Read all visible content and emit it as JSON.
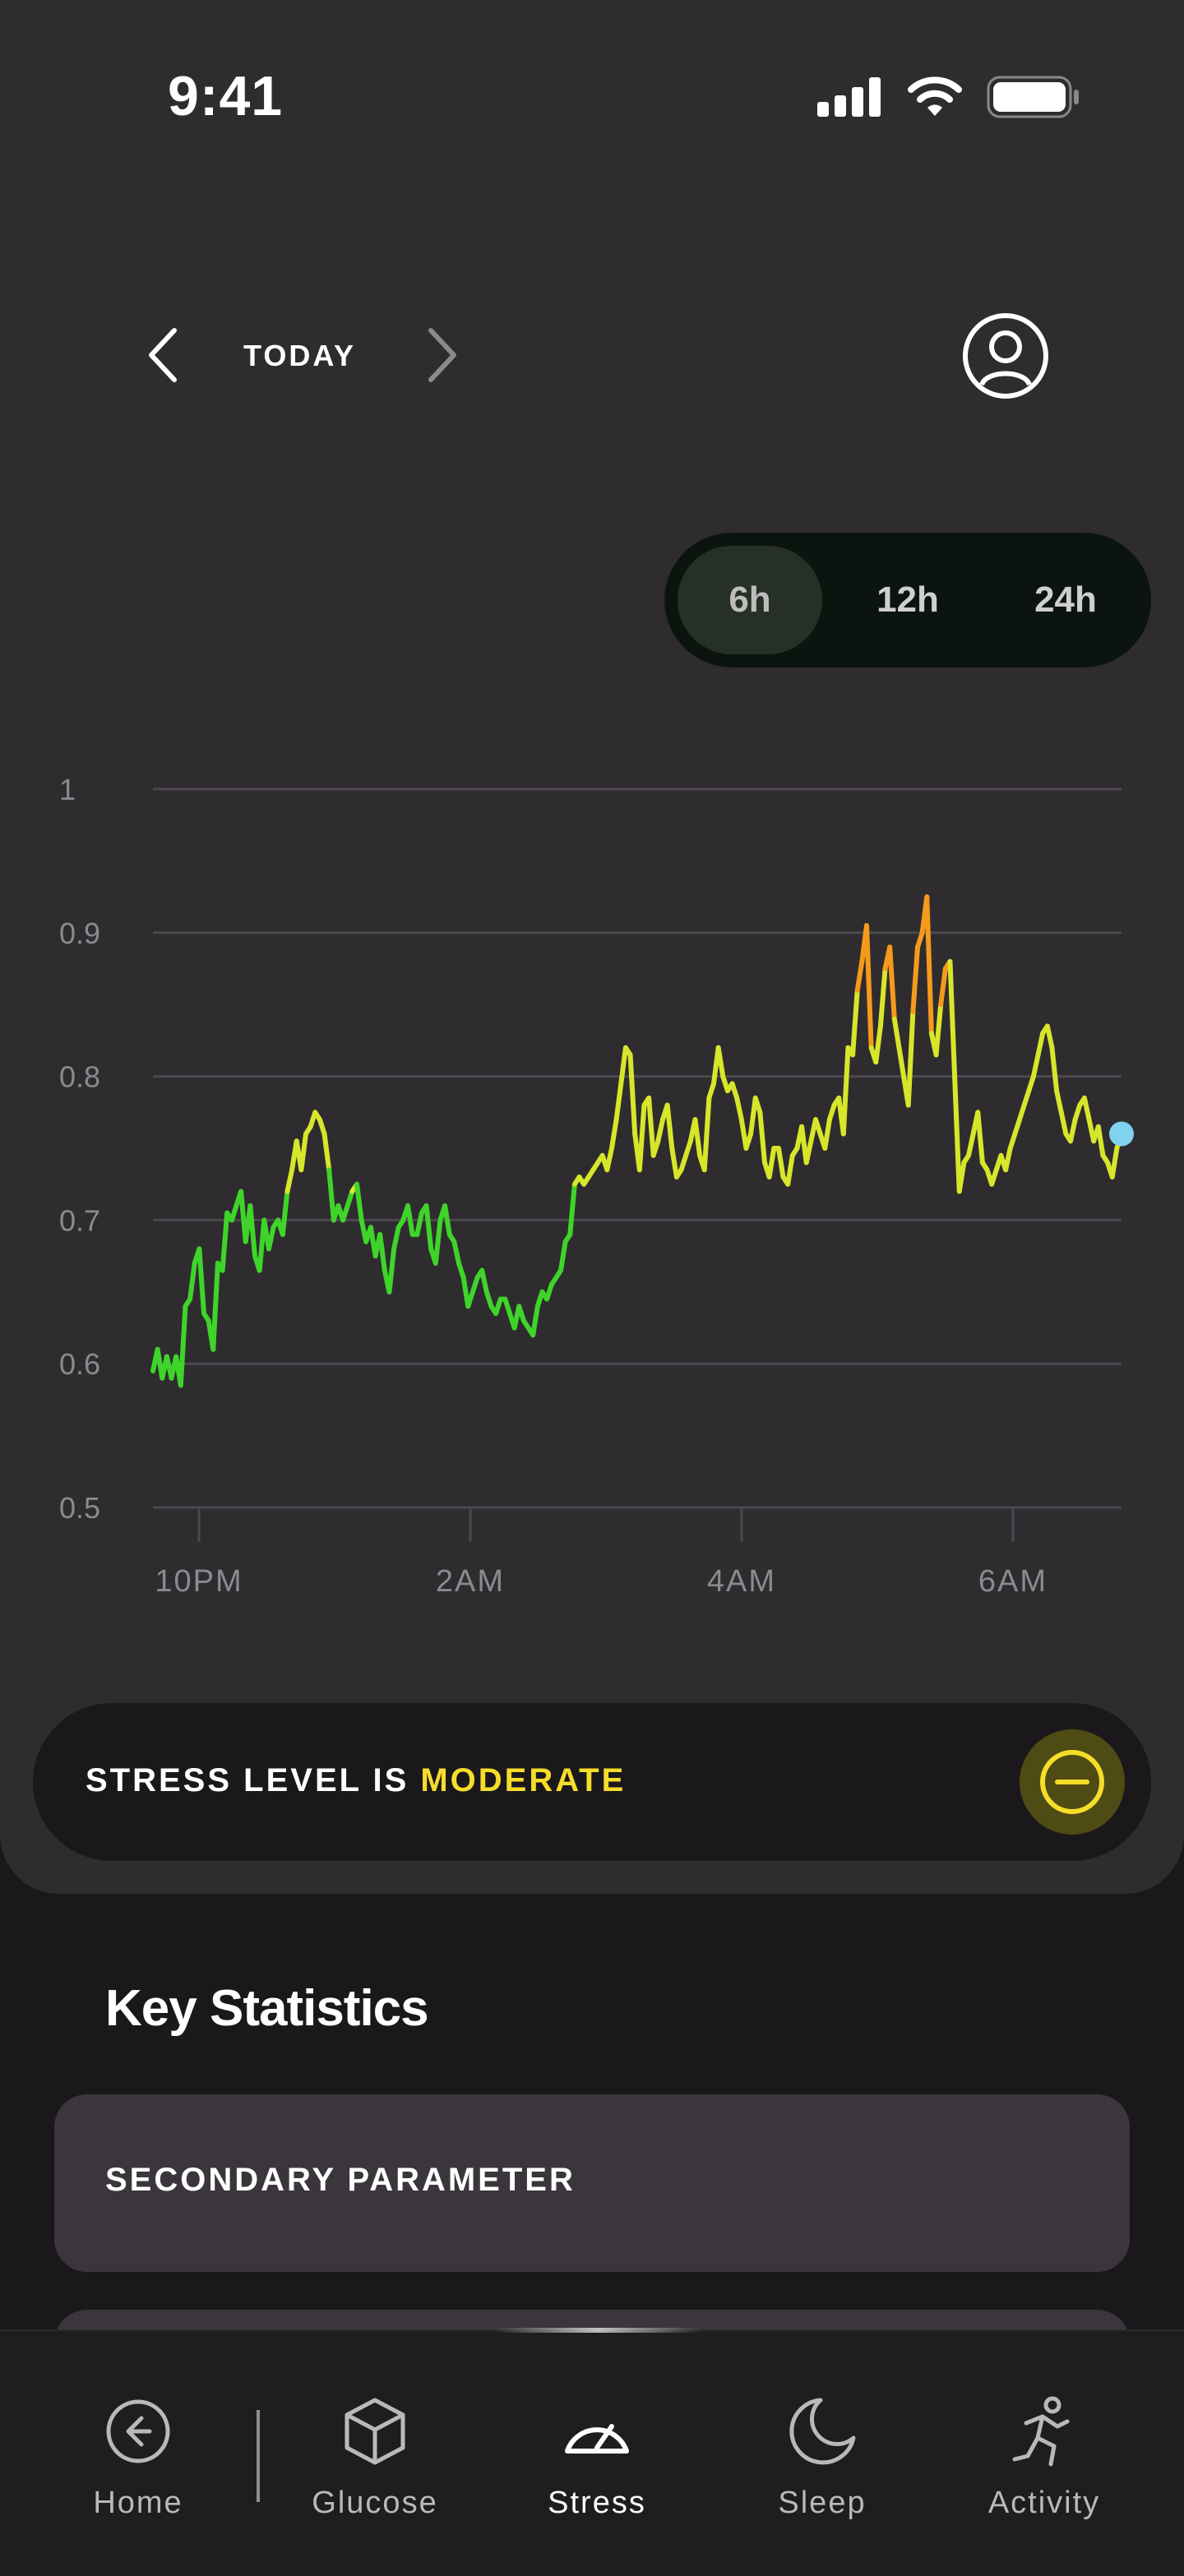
{
  "status_bar": {
    "time": "9:41"
  },
  "date_nav": {
    "label": "TODAY"
  },
  "range_selector": {
    "options": [
      "6h",
      "12h",
      "24h"
    ],
    "selected": "6h"
  },
  "chart_data": {
    "type": "line",
    "ylim": [
      0.5,
      1
    ],
    "yticks": [
      "1",
      "0.9",
      "0.8",
      "0.7",
      "0.6",
      "0.5"
    ],
    "xticks": [
      "10PM",
      "2AM",
      "4AM",
      "6AM"
    ],
    "grid": true,
    "color_scale": {
      "low": "#3fd42a",
      "mid": "#d8e62a",
      "high": "#f59a1c"
    },
    "current_marker_color": "#7fd3f0",
    "series": [
      {
        "values": [
          0.595,
          0.61,
          0.59,
          0.605,
          0.59,
          0.605,
          0.585,
          0.64,
          0.645,
          0.67,
          0.68,
          0.635,
          0.63,
          0.61,
          0.67,
          0.665,
          0.705,
          0.7,
          0.71,
          0.72,
          0.685,
          0.71,
          0.675,
          0.665,
          0.7,
          0.68,
          0.695,
          0.7,
          0.69,
          0.72,
          0.735,
          0.755,
          0.735,
          0.76,
          0.765,
          0.775,
          0.77,
          0.76,
          0.735,
          0.7,
          0.71,
          0.7,
          0.71,
          0.72,
          0.725,
          0.7,
          0.685,
          0.695,
          0.675,
          0.69,
          0.665,
          0.65,
          0.68,
          0.695,
          0.7,
          0.71,
          0.69,
          0.69,
          0.705,
          0.71,
          0.68,
          0.67,
          0.7,
          0.71,
          0.69,
          0.685,
          0.67,
          0.66,
          0.64,
          0.65,
          0.66,
          0.665,
          0.65,
          0.64,
          0.635,
          0.645,
          0.645,
          0.635,
          0.625,
          0.64,
          0.63,
          0.625,
          0.62,
          0.64,
          0.65,
          0.645,
          0.655,
          0.66,
          0.665,
          0.685,
          0.69,
          0.725,
          0.73,
          0.725,
          0.73,
          0.735,
          0.74,
          0.745,
          0.735,
          0.75,
          0.77,
          0.795,
          0.82,
          0.815,
          0.76,
          0.735,
          0.78,
          0.785,
          0.745,
          0.755,
          0.77,
          0.78,
          0.75,
          0.73,
          0.735,
          0.745,
          0.755,
          0.77,
          0.745,
          0.735,
          0.785,
          0.795,
          0.82,
          0.8,
          0.79,
          0.795,
          0.785,
          0.77,
          0.75,
          0.76,
          0.785,
          0.775,
          0.74,
          0.73,
          0.75,
          0.75,
          0.73,
          0.725,
          0.745,
          0.75,
          0.765,
          0.74,
          0.755,
          0.77,
          0.76,
          0.75,
          0.77,
          0.78,
          0.785,
          0.76,
          0.82,
          0.815,
          0.86,
          0.88,
          0.905,
          0.82,
          0.81,
          0.835,
          0.875,
          0.89,
          0.84,
          0.82,
          0.8,
          0.78,
          0.845,
          0.89,
          0.9,
          0.925,
          0.83,
          0.815,
          0.85,
          0.875,
          0.88,
          0.8,
          0.72,
          0.74,
          0.745,
          0.76,
          0.775,
          0.74,
          0.735,
          0.725,
          0.735,
          0.745,
          0.735,
          0.75,
          0.76,
          0.77,
          0.78,
          0.79,
          0.8,
          0.815,
          0.83,
          0.835,
          0.82,
          0.79,
          0.775,
          0.76,
          0.755,
          0.77,
          0.78,
          0.785,
          0.77,
          0.755,
          0.765,
          0.745,
          0.74,
          0.73,
          0.75,
          0.76
        ]
      }
    ]
  },
  "stress_banner": {
    "prefix": "STRESS LEVEL IS ",
    "level": "MODERATE",
    "level_color": "#f5dd2a"
  },
  "key_statistics": {
    "title": "Key Statistics",
    "cards": [
      "SECONDARY PARAMETER"
    ]
  },
  "tab_bar": {
    "items": [
      {
        "label": "Home",
        "icon": "arrow-left-circle-icon"
      },
      {
        "label": "Glucose",
        "icon": "cube-icon"
      },
      {
        "label": "Stress",
        "icon": "gauge-icon",
        "active": true
      },
      {
        "label": "Sleep",
        "icon": "moon-icon"
      },
      {
        "label": "Activity",
        "icon": "running-person-icon"
      }
    ]
  }
}
